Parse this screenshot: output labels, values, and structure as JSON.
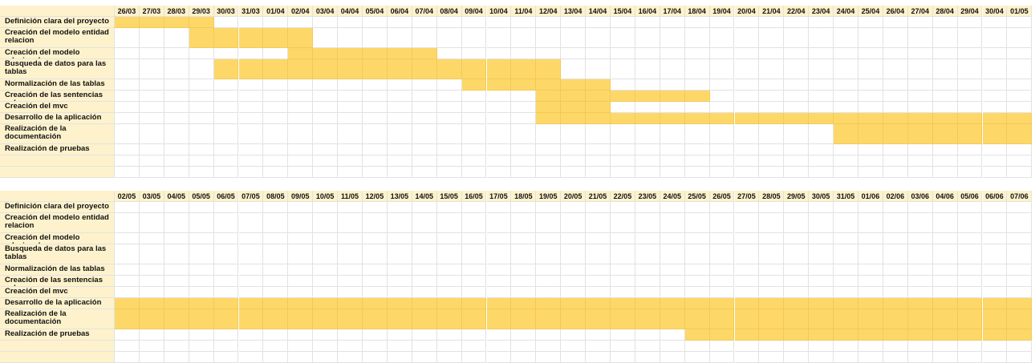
{
  "sheet": {
    "colors": {
      "label_bg": "#fef2cc",
      "task_fill": "#fdd868",
      "grid": "#e2e2e2",
      "bg": "#ffffff"
    },
    "tasks": [
      "Definición clara del proyecto",
      "Creación del modelo entidad relacion",
      "Creación del modelo relacional",
      "Busqueda de datos para las tablas",
      "Normalización de las tablas",
      "Creación de las sentencias sql",
      "Creación del mvc",
      "Desarrollo de la aplicación",
      "Realización de la documentación",
      "Realización de pruebas"
    ],
    "sections": [
      {
        "dates": [
          "26/03",
          "27/03",
          "28/03",
          "29/03",
          "30/03",
          "31/03",
          "01/04",
          "02/04",
          "03/04",
          "04/04",
          "05/04",
          "06/04",
          "07/04",
          "08/04",
          "09/04",
          "10/04",
          "11/04",
          "12/04",
          "13/04",
          "14/04",
          "15/04",
          "16/04",
          "17/04",
          "18/04",
          "19/04",
          "20/04",
          "21/04",
          "22/04",
          "23/04",
          "24/04",
          "25/04",
          "26/04",
          "27/04",
          "28/04",
          "29/04",
          "30/04",
          "01/05"
        ],
        "bars": [
          {
            "task": 0,
            "start": "26/03",
            "end": "29/03"
          },
          {
            "task": 1,
            "start": "29/03",
            "end": "02/04"
          },
          {
            "task": 2,
            "start": "02/04",
            "end": "07/04"
          },
          {
            "task": 3,
            "start": "30/03",
            "end": "12/04"
          },
          {
            "task": 4,
            "start": "09/04",
            "end": "14/04"
          },
          {
            "task": 5,
            "start": "12/04",
            "end": "18/04"
          },
          {
            "task": 6,
            "start": "12/04",
            "end": "14/04"
          },
          {
            "task": 7,
            "start": "12/04",
            "end": "01/05"
          },
          {
            "task": 8,
            "start": "24/04",
            "end": "01/05"
          }
        ]
      },
      {
        "dates": [
          "02/05",
          "03/05",
          "04/05",
          "05/05",
          "06/05",
          "07/05",
          "08/05",
          "09/05",
          "10/05",
          "11/05",
          "12/05",
          "13/05",
          "14/05",
          "15/05",
          "16/05",
          "17/05",
          "18/05",
          "19/05",
          "20/05",
          "21/05",
          "22/05",
          "23/05",
          "24/05",
          "25/05",
          "26/05",
          "27/05",
          "28/05",
          "29/05",
          "30/05",
          "31/05",
          "01/06",
          "02/06",
          "03/06",
          "04/06",
          "05/06",
          "06/06",
          "07/06"
        ],
        "bars": [
          {
            "task": 7,
            "start": "02/05",
            "end": "07/06"
          },
          {
            "task": 8,
            "start": "02/05",
            "end": "07/06"
          },
          {
            "task": 9,
            "start": "25/05",
            "end": "07/06"
          }
        ]
      }
    ]
  }
}
